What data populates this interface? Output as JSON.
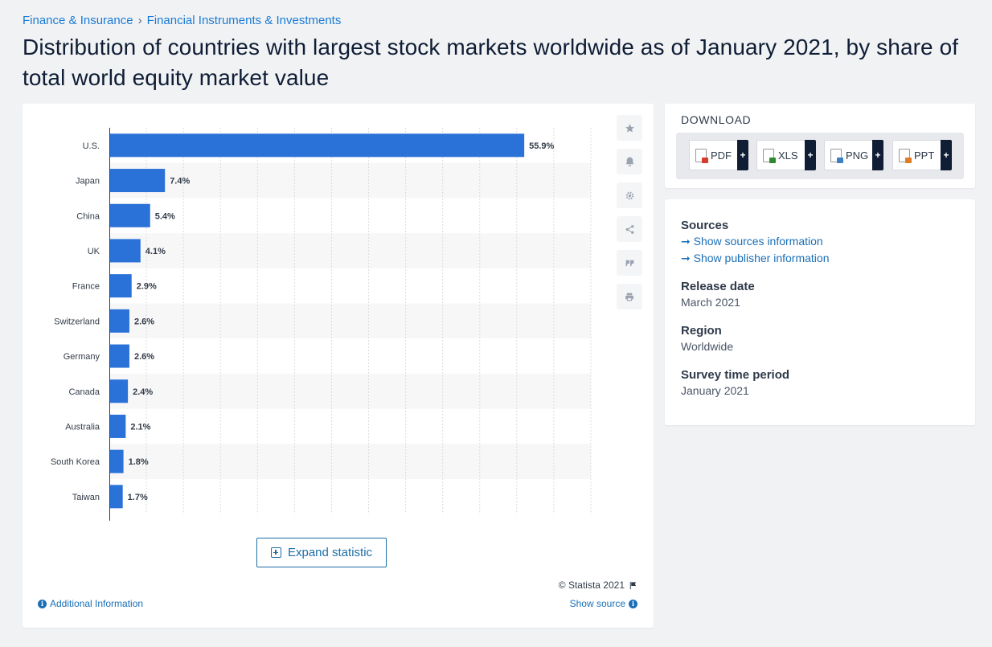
{
  "breadcrumb": {
    "item1": "Finance & Insurance",
    "separator": "›",
    "item2": "Financial Instruments & Investments"
  },
  "page_title": "Distribution of countries with largest stock markets worldwide as of January 2021, by share of total world equity market value",
  "chart_data": {
    "type": "bar",
    "orientation": "horizontal",
    "categories": [
      "U.S.",
      "Japan",
      "China",
      "UK",
      "France",
      "Switzerland",
      "Germany",
      "Canada",
      "Australia",
      "South Korea",
      "Taiwan"
    ],
    "values": [
      55.9,
      7.4,
      5.4,
      4.1,
      2.9,
      2.6,
      2.6,
      2.4,
      2.1,
      1.8,
      1.7
    ],
    "value_labels": [
      "55.9%",
      "7.4%",
      "5.4%",
      "4.1%",
      "2.9%",
      "2.6%",
      "2.6%",
      "2.4%",
      "2.1%",
      "1.8%",
      "1.7%"
    ],
    "xlim": [
      0,
      65
    ],
    "grid": true,
    "bar_color": "#2a71d8",
    "label_color": "#333c48"
  },
  "chart_footer": {
    "expand_label": "Expand statistic",
    "copyright": "© Statista 2021",
    "additional_info": "Additional Information",
    "show_source": "Show source"
  },
  "toolbar": {
    "icons": [
      "star-icon",
      "bell-icon",
      "gear-icon",
      "share-icon",
      "quote-icon",
      "print-icon"
    ]
  },
  "download": {
    "title": "DOWNLOAD",
    "buttons": [
      {
        "label": "PDF",
        "icon": "pdf-file-icon",
        "color": "#d83a2e"
      },
      {
        "label": "XLS",
        "icon": "xls-file-icon",
        "color": "#2f8a2f"
      },
      {
        "label": "PNG",
        "icon": "png-file-icon",
        "color": "#3c7fc4"
      },
      {
        "label": "PPT",
        "icon": "ppt-file-icon",
        "color": "#e07b26"
      }
    ],
    "plus": "+"
  },
  "info": {
    "sources_label": "Sources",
    "sources_link": "➞ Show sources information",
    "publisher_link": "➞ Show publisher information",
    "release_label": "Release date",
    "release_value": "March 2021",
    "region_label": "Region",
    "region_value": "Worldwide",
    "period_label": "Survey time period",
    "period_value": "January 2021"
  },
  "colors": {
    "accent": "#1a7bd6",
    "dark": "#0f1d35",
    "bar": "#2a71d8"
  }
}
